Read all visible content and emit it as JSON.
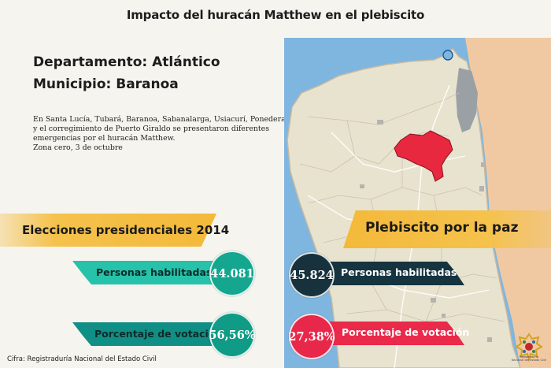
{
  "title": "Impacto del huracán Matthew en el plebiscito",
  "departamento": "Departamento: Atlántico",
  "municipio": "Municipio: Baranoa",
  "description_lines": [
    "En Santa Lucía, Tubará, Baranoa, Sabanalarga, Usiacurí, Ponedera",
    "y el corregimiento de Puerto Giraldo se presentaron diferentes",
    "emergencias por el huracán Matthew.",
    "Zona cero, 3 de octubre"
  ],
  "left_section": {
    "header": "Elecciones presidenciales 2014",
    "habilitadas_label": "Personas habilitadas",
    "habilitadas_value": "44.081",
    "votacion_label": "Porcentaje de votación",
    "votacion_value": "56,56%"
  },
  "right_section": {
    "header": "Plebiscito por la paz",
    "habilitadas_label": "Personas habilitadas",
    "habilitadas_value": "45.824",
    "votacion_label": "Porcentaje de votación",
    "votacion_value": "27,38%"
  },
  "source": "Cifra: Registraduría Nacional del Estado Civil",
  "logo": {
    "icon": "registraduria-logo-icon",
    "lines": [
      "Registraduría",
      "Nacional del Estado Civil"
    ]
  },
  "colors": {
    "background": "#f6f4ee",
    "map_land": "#e8e3cf",
    "map_highlight": "#e8283e",
    "sea": "#7fb6df",
    "header_yellow": "#f5c24c",
    "teal_light": "#26c2a9",
    "teal_dark": "#0f8f86",
    "navy": "#163440",
    "red": "#ea2a4a"
  }
}
